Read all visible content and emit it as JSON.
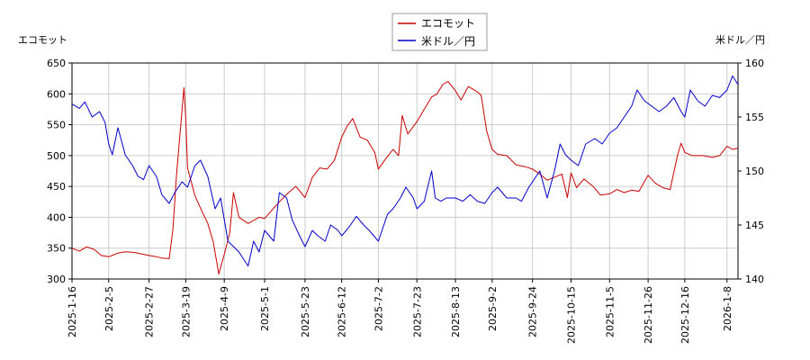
{
  "chart_data": {
    "type": "line",
    "left_axis": {
      "label": "エコモット",
      "ylim": [
        300,
        650
      ],
      "ticks": [
        300,
        350,
        400,
        450,
        500,
        550,
        600,
        650
      ]
    },
    "right_axis": {
      "label": "米ドル／円",
      "ylim": [
        140,
        160
      ],
      "ticks": [
        140,
        145,
        150,
        155,
        160
      ]
    },
    "x_ticks": [
      "2025-1-16",
      "2025-2-5",
      "2025-2-27",
      "2025-3-19",
      "2025-4-9",
      "2025-5-1",
      "2025-5-23",
      "2025-6-12",
      "2025-7-2",
      "2025-7-23",
      "2025-8-13",
      "2025-9-2",
      "2025-9-24",
      "2025-10-15",
      "2025-11-5",
      "2025-11-26",
      "2025-12-16",
      "2026-1-8"
    ],
    "x_range": [
      "2025-1-16",
      "2026-1-14"
    ],
    "grid": true,
    "legend": {
      "placement": "top-center"
    },
    "series": [
      {
        "name": "エコモット",
        "axis": "left",
        "color": "#cc0000",
        "points": [
          [
            "2025-1-16",
            350
          ],
          [
            "2025-1-20",
            345
          ],
          [
            "2025-1-24",
            352
          ],
          [
            "2025-1-28",
            348
          ],
          [
            "2025-2-1",
            338
          ],
          [
            "2025-2-5",
            336
          ],
          [
            "2025-2-10",
            342
          ],
          [
            "2025-2-14",
            344
          ],
          [
            "2025-2-19",
            343
          ],
          [
            "2025-2-24",
            340
          ],
          [
            "2025-2-27",
            338
          ],
          [
            "2025-3-3",
            336
          ],
          [
            "2025-3-6",
            334
          ],
          [
            "2025-3-10",
            333
          ],
          [
            "2025-3-12",
            380
          ],
          [
            "2025-3-14",
            470
          ],
          [
            "2025-3-16",
            540
          ],
          [
            "2025-3-18",
            610
          ],
          [
            "2025-3-19",
            560
          ],
          [
            "2025-3-20",
            480
          ],
          [
            "2025-3-24",
            435
          ],
          [
            "2025-3-27",
            415
          ],
          [
            "2025-3-31",
            390
          ],
          [
            "2025-4-3",
            360
          ],
          [
            "2025-4-6",
            308
          ],
          [
            "2025-4-9",
            340
          ],
          [
            "2025-4-12",
            375
          ],
          [
            "2025-4-14",
            440
          ],
          [
            "2025-4-17",
            400
          ],
          [
            "2025-4-22",
            390
          ],
          [
            "2025-4-28",
            400
          ],
          [
            "2025-5-1",
            398
          ],
          [
            "2025-5-6",
            415
          ],
          [
            "2025-5-10",
            428
          ],
          [
            "2025-5-14",
            440
          ],
          [
            "2025-5-18",
            450
          ],
          [
            "2025-5-23",
            432
          ],
          [
            "2025-5-27",
            465
          ],
          [
            "2025-5-31",
            480
          ],
          [
            "2025-6-4",
            478
          ],
          [
            "2025-6-8",
            492
          ],
          [
            "2025-6-12",
            530
          ],
          [
            "2025-6-15",
            548
          ],
          [
            "2025-6-18",
            560
          ],
          [
            "2025-6-22",
            530
          ],
          [
            "2025-6-26",
            525
          ],
          [
            "2025-6-30",
            505
          ],
          [
            "2025-7-2",
            478
          ],
          [
            "2025-7-6",
            495
          ],
          [
            "2025-7-10",
            510
          ],
          [
            "2025-7-13",
            500
          ],
          [
            "2025-7-15",
            565
          ],
          [
            "2025-7-18",
            535
          ],
          [
            "2025-7-23",
            555
          ],
          [
            "2025-7-27",
            575
          ],
          [
            "2025-7-31",
            595
          ],
          [
            "2025-8-3",
            600
          ],
          [
            "2025-8-6",
            615
          ],
          [
            "2025-8-9",
            620
          ],
          [
            "2025-8-13",
            605
          ],
          [
            "2025-8-16",
            590
          ],
          [
            "2025-8-20",
            612
          ],
          [
            "2025-8-24",
            605
          ],
          [
            "2025-8-27",
            598
          ],
          [
            "2025-8-30",
            540
          ],
          [
            "2025-9-2",
            510
          ],
          [
            "2025-9-5",
            502
          ],
          [
            "2025-9-10",
            500
          ],
          [
            "2025-9-15",
            485
          ],
          [
            "2025-9-20",
            482
          ],
          [
            "2025-9-24",
            478
          ],
          [
            "2025-9-28",
            470
          ],
          [
            "2025-10-2",
            460
          ],
          [
            "2025-10-6",
            465
          ],
          [
            "2025-10-10",
            470
          ],
          [
            "2025-10-13",
            432
          ],
          [
            "2025-10-15",
            472
          ],
          [
            "2025-10-18",
            448
          ],
          [
            "2025-10-22",
            462
          ],
          [
            "2025-10-27",
            450
          ],
          [
            "2025-10-31",
            436
          ],
          [
            "2025-11-5",
            438
          ],
          [
            "2025-11-9",
            445
          ],
          [
            "2025-11-13",
            440
          ],
          [
            "2025-11-17",
            444
          ],
          [
            "2025-11-21",
            442
          ],
          [
            "2025-11-26",
            468
          ],
          [
            "2025-11-30",
            455
          ],
          [
            "2025-12-4",
            448
          ],
          [
            "2025-12-8",
            445
          ],
          [
            "2025-12-12",
            500
          ],
          [
            "2025-12-14",
            520
          ],
          [
            "2025-12-16",
            505
          ],
          [
            "2025-12-20",
            500
          ],
          [
            "2025-12-26",
            500
          ],
          [
            "2025-12-31",
            497
          ],
          [
            "2026-1-4",
            500
          ],
          [
            "2026-1-8",
            515
          ],
          [
            "2026-1-11",
            510
          ],
          [
            "2026-1-14",
            512
          ]
        ]
      },
      {
        "name": "米ドル／円",
        "axis": "right",
        "color": "#0000cc",
        "points": [
          [
            "2025-1-16",
            156.2
          ],
          [
            "2025-1-20",
            155.8
          ],
          [
            "2025-1-23",
            156.4
          ],
          [
            "2025-1-27",
            155.0
          ],
          [
            "2025-1-31",
            155.5
          ],
          [
            "2025-2-3",
            154.5
          ],
          [
            "2025-2-5",
            152.5
          ],
          [
            "2025-2-7",
            151.5
          ],
          [
            "2025-2-10",
            154.0
          ],
          [
            "2025-2-12",
            152.8
          ],
          [
            "2025-2-14",
            151.5
          ],
          [
            "2025-2-18",
            150.5
          ],
          [
            "2025-2-21",
            149.5
          ],
          [
            "2025-2-24",
            149.2
          ],
          [
            "2025-2-27",
            150.5
          ],
          [
            "2025-3-3",
            149.5
          ],
          [
            "2025-3-6",
            147.8
          ],
          [
            "2025-3-10",
            147.0
          ],
          [
            "2025-3-13",
            148.0
          ],
          [
            "2025-3-17",
            149.0
          ],
          [
            "2025-3-20",
            148.5
          ],
          [
            "2025-3-24",
            150.5
          ],
          [
            "2025-3-27",
            151.0
          ],
          [
            "2025-3-31",
            149.5
          ],
          [
            "2025-4-2",
            148.0
          ],
          [
            "2025-4-4",
            146.5
          ],
          [
            "2025-4-7",
            147.5
          ],
          [
            "2025-4-9",
            145.5
          ],
          [
            "2025-4-11",
            143.5
          ],
          [
            "2025-4-14",
            143.0
          ],
          [
            "2025-4-17",
            142.5
          ],
          [
            "2025-4-22",
            141.2
          ],
          [
            "2025-4-25",
            143.5
          ],
          [
            "2025-4-28",
            142.5
          ],
          [
            "2025-5-1",
            144.5
          ],
          [
            "2025-5-6",
            143.5
          ],
          [
            "2025-5-9",
            148.0
          ],
          [
            "2025-5-13",
            147.5
          ],
          [
            "2025-5-16",
            145.5
          ],
          [
            "2025-5-20",
            144.0
          ],
          [
            "2025-5-23",
            143.0
          ],
          [
            "2025-5-27",
            144.5
          ],
          [
            "2025-5-30",
            144.0
          ],
          [
            "2025-6-3",
            143.5
          ],
          [
            "2025-6-6",
            145.0
          ],
          [
            "2025-6-10",
            144.5
          ],
          [
            "2025-6-12",
            144.0
          ],
          [
            "2025-6-16",
            144.8
          ],
          [
            "2025-6-20",
            145.8
          ],
          [
            "2025-6-24",
            145.0
          ],
          [
            "2025-6-27",
            144.5
          ],
          [
            "2025-7-2",
            143.5
          ],
          [
            "2025-7-7",
            146.0
          ],
          [
            "2025-7-10",
            146.5
          ],
          [
            "2025-7-14",
            147.5
          ],
          [
            "2025-7-17",
            148.5
          ],
          [
            "2025-7-21",
            147.5
          ],
          [
            "2025-7-23",
            146.5
          ],
          [
            "2025-7-27",
            147.2
          ],
          [
            "2025-7-31",
            150.0
          ],
          [
            "2025-8-2",
            147.5
          ],
          [
            "2025-8-5",
            147.2
          ],
          [
            "2025-8-8",
            147.5
          ],
          [
            "2025-8-13",
            147.5
          ],
          [
            "2025-8-17",
            147.2
          ],
          [
            "2025-8-21",
            147.8
          ],
          [
            "2025-8-25",
            147.2
          ],
          [
            "2025-8-29",
            147.0
          ],
          [
            "2025-9-2",
            148.0
          ],
          [
            "2025-9-5",
            148.5
          ],
          [
            "2025-9-10",
            147.5
          ],
          [
            "2025-9-15",
            147.5
          ],
          [
            "2025-9-18",
            147.2
          ],
          [
            "2025-9-22",
            148.5
          ],
          [
            "2025-9-24",
            149.0
          ],
          [
            "2025-9-28",
            150.0
          ],
          [
            "2025-10-2",
            147.5
          ],
          [
            "2025-10-6",
            150.0
          ],
          [
            "2025-10-9",
            152.5
          ],
          [
            "2025-10-12",
            151.5
          ],
          [
            "2025-10-15",
            151.0
          ],
          [
            "2025-10-19",
            150.5
          ],
          [
            "2025-10-23",
            152.5
          ],
          [
            "2025-10-28",
            153.0
          ],
          [
            "2025-11-1",
            152.5
          ],
          [
            "2025-11-5",
            153.5
          ],
          [
            "2025-11-9",
            154.0
          ],
          [
            "2025-11-13",
            155.0
          ],
          [
            "2025-11-17",
            156.0
          ],
          [
            "2025-11-20",
            157.5
          ],
          [
            "2025-11-24",
            156.5
          ],
          [
            "2025-11-28",
            156.0
          ],
          [
            "2025-12-2",
            155.5
          ],
          [
            "2025-12-6",
            156.0
          ],
          [
            "2025-12-10",
            156.8
          ],
          [
            "2025-12-14",
            155.5
          ],
          [
            "2025-12-16",
            155.0
          ],
          [
            "2025-12-19",
            157.5
          ],
          [
            "2025-12-23",
            156.5
          ],
          [
            "2025-12-27",
            156.0
          ],
          [
            "2025-12-31",
            157.0
          ],
          [
            "2026-1-4",
            156.8
          ],
          [
            "2026-1-8",
            157.5
          ],
          [
            "2026-1-11",
            158.8
          ],
          [
            "2026-1-14",
            158.0
          ]
        ]
      }
    ]
  }
}
